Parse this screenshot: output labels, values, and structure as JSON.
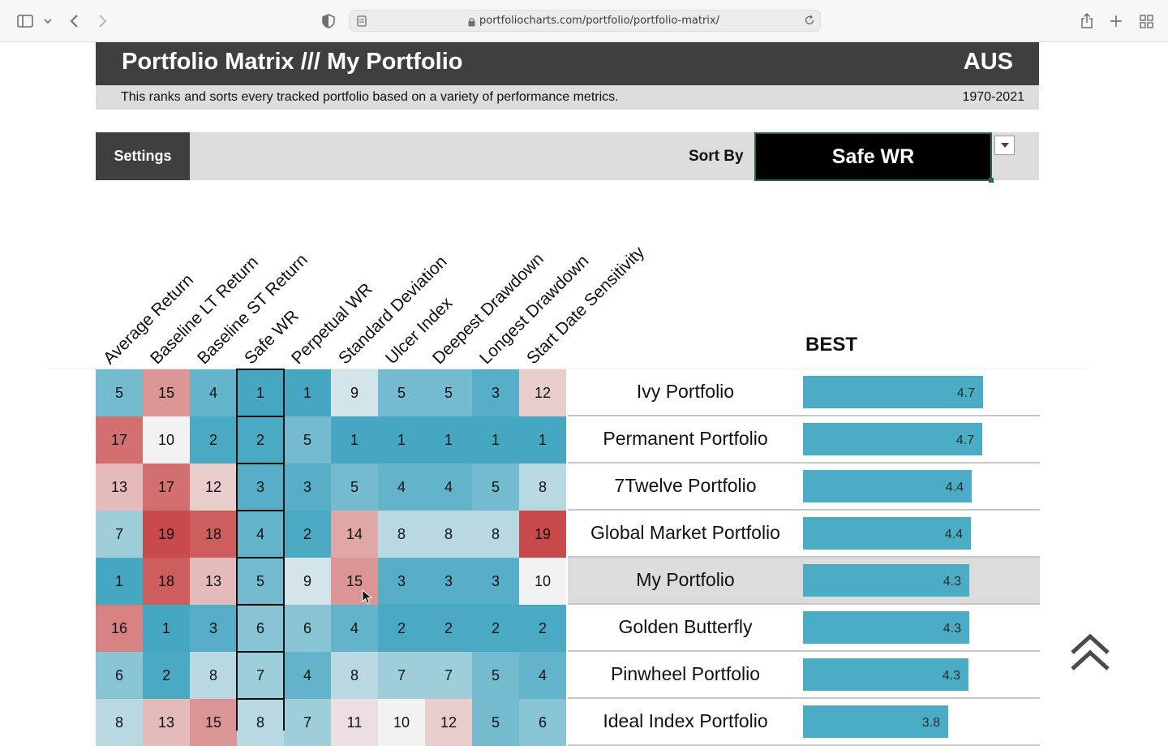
{
  "browser": {
    "url": "portfoliocharts.com/portfolio/portfolio-matrix/"
  },
  "header": {
    "title": "Portfolio Matrix /// My Portfolio",
    "region": "AUS",
    "description": "This ranks and sorts every tracked portfolio based on a variety of performance metrics.",
    "years": "1970-2021"
  },
  "settings": {
    "button_label": "Settings",
    "sort_by_label": "Sort By",
    "sort_by_value": "Safe WR"
  },
  "columns": [
    "Average Return",
    "Baseline LT Return",
    "Baseline ST Return",
    "Safe WR",
    "Perpetual WR",
    "Standard Deviation",
    "Ulcer Index",
    "Deepest Drawdown",
    "Longest Drawdown",
    "Start Date Sensitivity"
  ],
  "best_label": "BEST",
  "rows": [
    {
      "name": "Ivy Portfolio",
      "ranks": [
        "5",
        "15",
        "4",
        "1",
        "1",
        "9",
        "5",
        "5",
        "3",
        "12"
      ],
      "score": "4.7",
      "score_value": 4.7,
      "highlight": false
    },
    {
      "name": "Permanent Portfolio",
      "ranks": [
        "17",
        "10",
        "2",
        "2",
        "5",
        "1",
        "1",
        "1",
        "1",
        "1"
      ],
      "score": "4.7",
      "score_value": 4.67,
      "highlight": false
    },
    {
      "name": "7Twelve Portfolio",
      "ranks": [
        "13",
        "17",
        "12",
        "3",
        "3",
        "5",
        "4",
        "4",
        "5",
        "8"
      ],
      "score": "4.4",
      "score_value": 4.4,
      "highlight": false
    },
    {
      "name": "Global Market Portfolio",
      "ranks": [
        "7",
        "19",
        "18",
        "4",
        "2",
        "14",
        "8",
        "8",
        "8",
        "19"
      ],
      "score": "4.4",
      "score_value": 4.38,
      "highlight": false
    },
    {
      "name": "My Portfolio",
      "ranks": [
        "1",
        "18",
        "13",
        "5",
        "9",
        "15",
        "3",
        "3",
        "3",
        "10"
      ],
      "score": "4.3",
      "score_value": 4.34,
      "highlight": true
    },
    {
      "name": "Golden Butterfly",
      "ranks": [
        "16",
        "1",
        "3",
        "6",
        "6",
        "4",
        "2",
        "2",
        "2",
        "2"
      ],
      "score": "4.3",
      "score_value": 4.33,
      "highlight": false
    },
    {
      "name": "Pinwheel Portfolio",
      "ranks": [
        "6",
        "2",
        "8",
        "7",
        "4",
        "8",
        "7",
        "7",
        "5",
        "4"
      ],
      "score": "4.3",
      "score_value": 4.31,
      "highlight": false
    },
    {
      "name": "Ideal Index Portfolio",
      "ranks": [
        "8",
        "13",
        "15",
        "8",
        "7",
        "11",
        "10",
        "12",
        "5",
        "6"
      ],
      "score": "3.8",
      "score_value": 3.8,
      "highlight": false
    }
  ],
  "colors": {
    "rank_best": "#45a7c2",
    "rank_mid": "#f2f2f2",
    "rank_worst": "#c94a4a",
    "bar": "#4aacc5"
  }
}
